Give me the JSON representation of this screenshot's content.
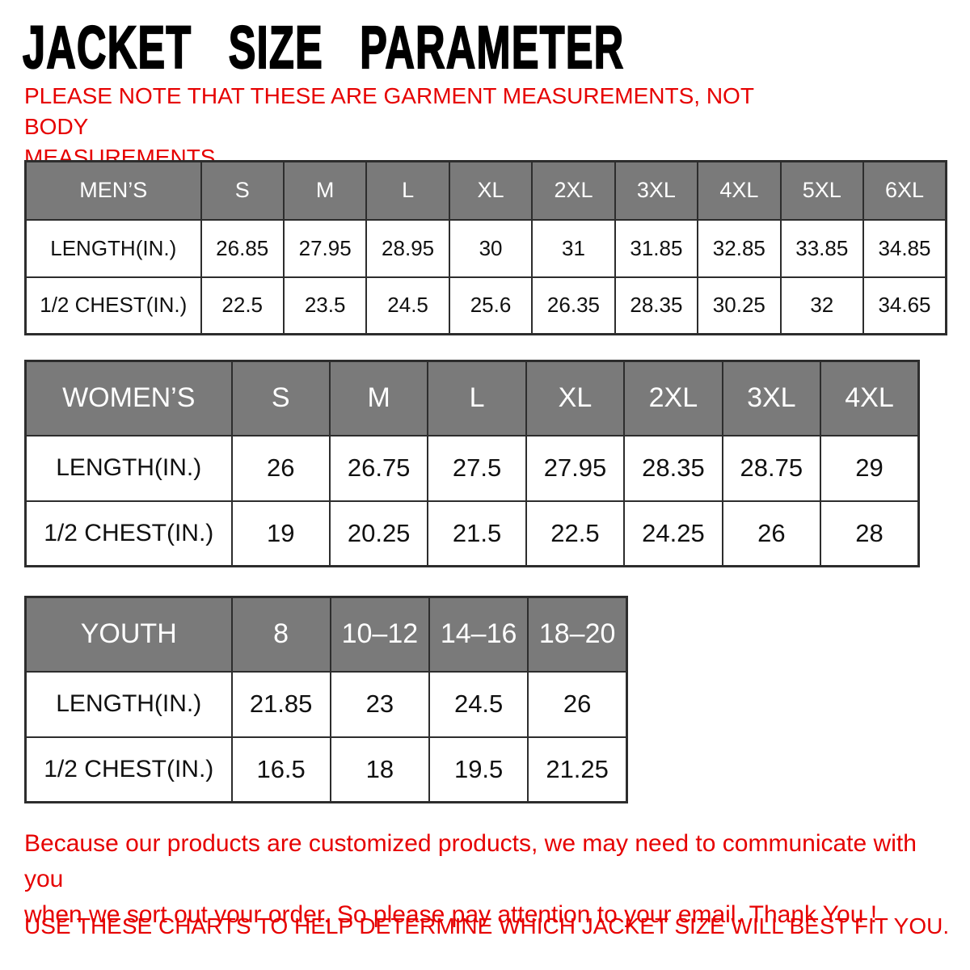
{
  "page": {
    "title": "JACKET SIZE PARAMETER",
    "note_lines": [
      "PLEASE NOTE THAT THESE ARE GARMENT MEASUREMENTS, NOT BODY",
      "MEASUREMENTS"
    ],
    "footer_lines": [
      "Because our products are customized products, we may need to communicate with you",
      "when we sort out your order. So please pay attention to your email. Thank You !"
    ],
    "footer_final": "USE THESE CHARTS TO HELP DETERMINE WHICH JACKET SIZE WILL BEST FIT YOU."
  },
  "colors": {
    "header_bg": "#7a7a7a",
    "header_text": "#ffffff",
    "grid_border": "#2d2d2d",
    "accent_red": "#e60000",
    "cell_text": "#111111"
  },
  "tables": [
    {
      "id": "mens",
      "group_label": "MEN’S",
      "sizes": [
        "S",
        "M",
        "L",
        "XL",
        "2XL",
        "3XL",
        "4XL",
        "5XL",
        "6XL"
      ],
      "rows": [
        {
          "label": "LENGTH(IN.)",
          "values": [
            "26.85",
            "27.95",
            "28.95",
            "30",
            "31",
            "31.85",
            "32.85",
            "33.85",
            "34.85"
          ]
        },
        {
          "label": "1/2 CHEST(IN.)",
          "values": [
            "22.5",
            "23.5",
            "24.5",
            "25.6",
            "26.35",
            "28.35",
            "30.25",
            "32",
            "34.65"
          ]
        }
      ]
    },
    {
      "id": "womens",
      "group_label": "WOMEN’S",
      "sizes": [
        "S",
        "M",
        "L",
        "XL",
        "2XL",
        "3XL",
        "4XL"
      ],
      "rows": [
        {
          "label": "LENGTH(IN.)",
          "values": [
            "26",
            "26.75",
            "27.5",
            "27.95",
            "28.35",
            "28.75",
            "29"
          ]
        },
        {
          "label": "1/2 CHEST(IN.)",
          "values": [
            "19",
            "20.25",
            "21.5",
            "22.5",
            "24.25",
            "26",
            "28"
          ]
        }
      ]
    },
    {
      "id": "youth",
      "group_label": "YOUTH",
      "sizes": [
        "8",
        "10–12",
        "14–16",
        "18–20"
      ],
      "rows": [
        {
          "label": "LENGTH(IN.)",
          "values": [
            "21.85",
            "23",
            "24.5",
            "26"
          ]
        },
        {
          "label": "1/2 CHEST(IN.)",
          "values": [
            "16.5",
            "18",
            "19.5",
            "21.25"
          ]
        }
      ]
    }
  ]
}
